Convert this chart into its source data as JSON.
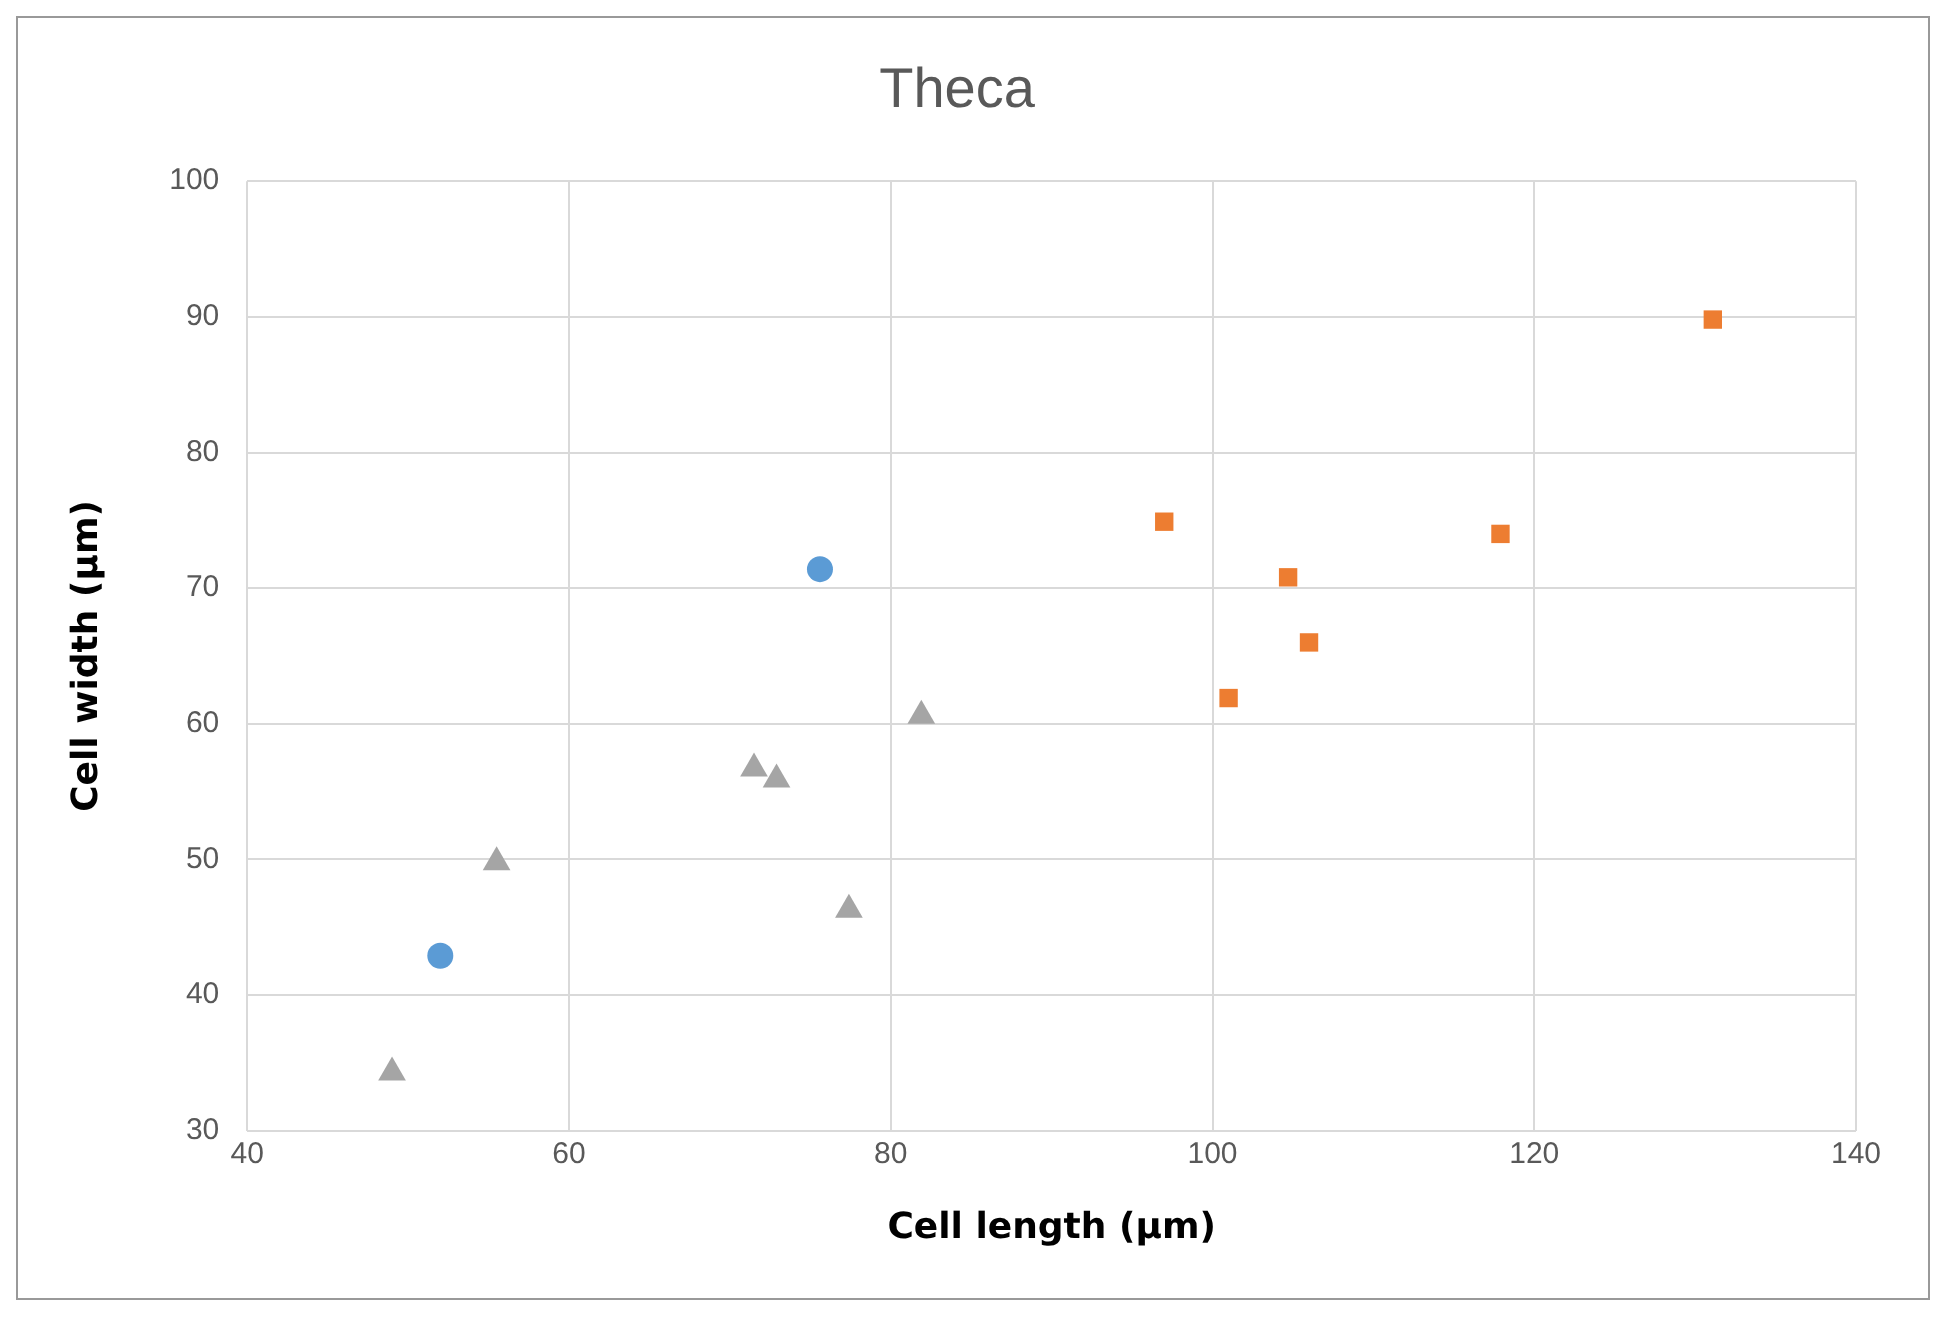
{
  "chart_data": {
    "type": "scatter",
    "title": "Theca",
    "xlabel": "Cell length (µm)",
    "ylabel": "Cell width (µm)",
    "xlim": [
      40,
      140
    ],
    "xticks": [
      40,
      60,
      80,
      100,
      120,
      140
    ],
    "ylim": [
      30,
      100
    ],
    "yticks": [
      30,
      40,
      50,
      60,
      70,
      80,
      90,
      100
    ],
    "grid": true,
    "series": [
      {
        "color": "#5b9bd5",
        "marker": "circle",
        "x": [
          52.0,
          75.6
        ],
        "values": [
          42.9,
          71.4
        ]
      },
      {
        "color": "#ed7d31",
        "marker": "square",
        "x": [
          97.0,
          101.0,
          104.7,
          106.0,
          117.9,
          131.1
        ],
        "values": [
          74.9,
          61.9,
          70.8,
          66.0,
          74.0,
          89.8
        ]
      },
      {
        "color": "#a5a5a5",
        "marker": "triangle",
        "x": [
          49.0,
          55.5,
          71.5,
          72.9,
          77.4,
          81.9
        ],
        "values": [
          34.3,
          49.8,
          56.7,
          55.9,
          46.3,
          60.6
        ]
      }
    ]
  }
}
